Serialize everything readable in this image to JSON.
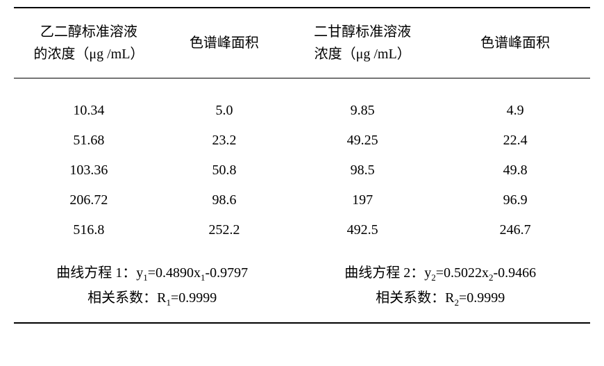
{
  "table": {
    "type": "table",
    "background_color": "#ffffff",
    "text_color": "#000000",
    "border_color": "#000000",
    "border_width_outer": 2,
    "border_width_header": 1.5,
    "font_family": "SimSun",
    "header_fontsize": 20,
    "data_fontsize": 20,
    "column_widths_pct": [
      26,
      21,
      27,
      26
    ],
    "columns": [
      {
        "label_line1": "乙二醇标准溶液",
        "label_line2": "的浓度（μg /mL）"
      },
      {
        "label_line1": "色谱峰面积",
        "label_line2": ""
      },
      {
        "label_line1": "二甘醇标准溶液",
        "label_line2": "浓度（μg /mL）"
      },
      {
        "label_line1": "色谱峰面积",
        "label_line2": ""
      }
    ],
    "rows": [
      [
        "10.34",
        "5.0",
        "9.85",
        "4.9"
      ],
      [
        "51.68",
        "23.2",
        "49.25",
        "22.4"
      ],
      [
        "103.36",
        "50.8",
        "98.5",
        "49.8"
      ],
      [
        "206.72",
        "98.6",
        "197",
        "96.9"
      ],
      [
        "516.8",
        "252.2",
        "492.5",
        "246.7"
      ]
    ],
    "footer": {
      "left": {
        "equation_label": "曲线方程 1：",
        "equation_y": "y",
        "equation_y_sub": "1",
        "equation_eq": "=0.4890x",
        "equation_x_sub": "1",
        "equation_tail": "-0.9797",
        "corr_label": "相关系数：",
        "corr_r": "R",
        "corr_r_sub": "1",
        "corr_value": "=0.9999"
      },
      "right": {
        "equation_label": "曲线方程 2：",
        "equation_y": "y",
        "equation_y_sub": "2",
        "equation_eq": "=0.5022x",
        "equation_x_sub": "2",
        "equation_tail": "-0.9466",
        "corr_label": "相关系数：",
        "corr_r": "R",
        "corr_r_sub": "2",
        "corr_value": "=0.9999"
      }
    }
  }
}
